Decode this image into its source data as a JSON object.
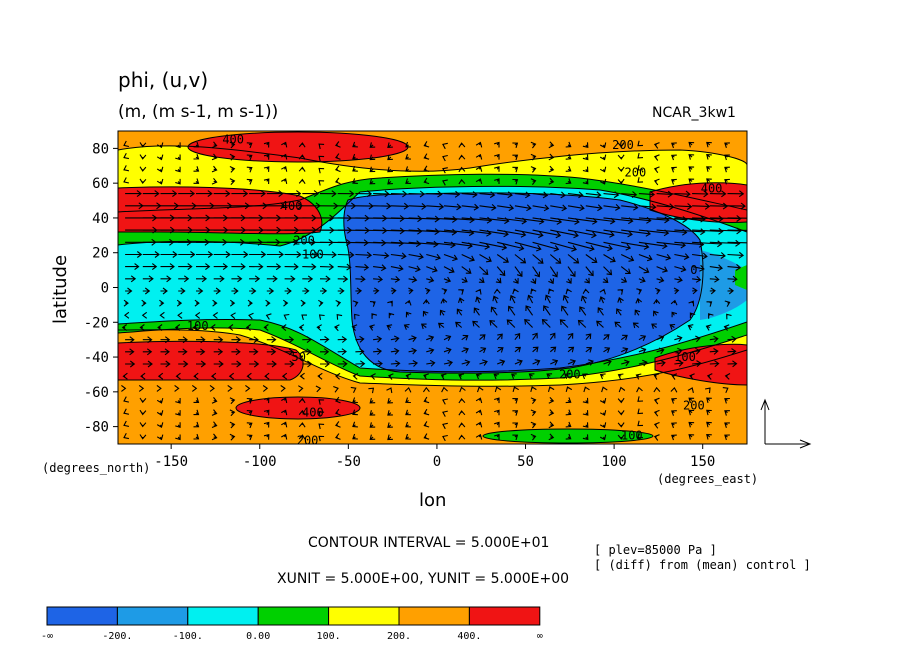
{
  "title": "phi, (u,v)",
  "units": "(m, (m s-1, m s-1))",
  "model": "NCAR_3kw1",
  "contour_interval": "CONTOUR INTERVAL = 5.000E+01",
  "vector_units": "XUNIT = 5.000E+00, YUNIT = 5.000E+00",
  "plev": "[ plev=85000 Pa ]",
  "diff_note": "[ (diff) from (mean) control ]",
  "chart_data": {
    "type": "heatmap",
    "title": "phi, (u,v)",
    "xlabel": "lon",
    "ylabel": "latitude",
    "x_unit_label": "(degrees_east)",
    "y_unit_label": "(degrees_north)",
    "xlim": [
      -180,
      175
    ],
    "ylim": [
      -90,
      90
    ],
    "x_ticks": [
      -150,
      -100,
      -50,
      0,
      50,
      100,
      150
    ],
    "x_tick_labels": [
      "-150",
      "-100",
      "-50",
      "0",
      "50",
      "100",
      "150"
    ],
    "y_ticks": [
      80,
      60,
      40,
      20,
      0,
      -20,
      -40,
      -60,
      -80
    ],
    "y_tick_labels": [
      "80",
      "60",
      "40",
      "20",
      "0",
      "-20",
      "-40",
      "-60",
      "-80"
    ],
    "colorbar": {
      "boundaries": [
        "-∞",
        "-200.",
        "-100.",
        "0.00",
        "100.",
        "200.",
        "400.",
        "∞"
      ],
      "colors": [
        "#1e64e6",
        "#1e9be6",
        "#00f0f0",
        "#00d000",
        "#ffff00",
        "#ffa000",
        "#f01414"
      ]
    },
    "contour_labels": [
      {
        "lon": -115,
        "lat": 85,
        "text": "400"
      },
      {
        "lon": 105,
        "lat": 82,
        "text": "200"
      },
      {
        "lon": 112,
        "lat": 66,
        "text": "200"
      },
      {
        "lon": 155,
        "lat": 57,
        "text": "400"
      },
      {
        "lon": -82,
        "lat": 47,
        "text": "400"
      },
      {
        "lon": -75,
        "lat": 27,
        "text": "200"
      },
      {
        "lon": -70,
        "lat": 19,
        "text": "100"
      },
      {
        "lon": 145,
        "lat": 10,
        "text": "0"
      },
      {
        "lon": -135,
        "lat": -22,
        "text": "100"
      },
      {
        "lon": -78,
        "lat": -40,
        "text": "50"
      },
      {
        "lon": 140,
        "lat": -40,
        "text": "100"
      },
      {
        "lon": 75,
        "lat": -50,
        "text": "200"
      },
      {
        "lon": -70,
        "lat": -72,
        "text": "400"
      },
      {
        "lon": 145,
        "lat": -68,
        "text": "200"
      },
      {
        "lon": 110,
        "lat": -85,
        "text": "100"
      },
      {
        "lon": -73,
        "lat": -88,
        "text": "200"
      }
    ]
  }
}
